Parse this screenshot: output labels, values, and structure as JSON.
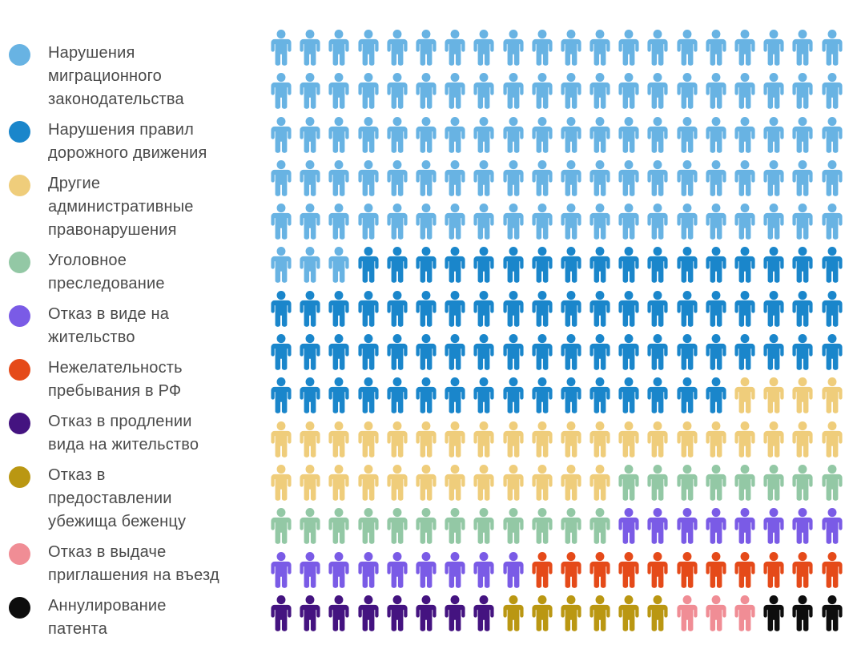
{
  "legend": {
    "items": [
      {
        "label": "Нарушения миграционного законодательства",
        "label_lines": [
          "Нарушения",
          "миграционного",
          "законодательства"
        ],
        "color": "#68B3E3"
      },
      {
        "label": "Нарушения правил дорожного движения",
        "label_lines": [
          "Нарушения правил",
          "дорожного движения"
        ],
        "color": "#1A86CB"
      },
      {
        "label": "Другие административные правонарушения",
        "label_lines": [
          "Другие",
          "административные",
          "правонарушения"
        ],
        "color": "#EFCD7B"
      },
      {
        "label": "Уголовное преследование",
        "label_lines": [
          "Уголовное",
          "преследование"
        ],
        "color": "#93C8A5"
      },
      {
        "label": "Отказ в виде на жительство",
        "label_lines": [
          "Отказ в виде на",
          "жительство"
        ],
        "color": "#7A5BE6"
      },
      {
        "label": "Нежелательность пребывания в РФ",
        "label_lines": [
          "Нежелательность",
          "пребывания в РФ"
        ],
        "color": "#E54A19"
      },
      {
        "label": "Отказ в продлении вида на жительство",
        "label_lines": [
          "Отказ в продлении",
          "вида на жительство"
        ],
        "color": "#441380"
      },
      {
        "label": "Отказ в предоставлении убежища беженцу",
        "label_lines": [
          "Отказ в",
          "предоставлении",
          "убежища беженцу"
        ],
        "color": "#BA9712"
      },
      {
        "label": "Отказ в выдаче приглашения на въезд",
        "label_lines": [
          "Отказ в выдаче",
          "приглашения на въезд"
        ],
        "color": "#F08D95"
      },
      {
        "label": "Аннулирование патента",
        "label_lines": [
          "Аннулирование",
          "патента"
        ],
        "color": "#0D0D0D"
      }
    ]
  },
  "chart_data": {
    "type": "pictogram",
    "icon": "person",
    "icons_per_row": 20,
    "rows": 14,
    "total_icons": 280,
    "legend_position": "left",
    "categories": [
      {
        "label": "Нарушения миграционного законодательства",
        "count": 103,
        "color": "#68B3E3"
      },
      {
        "label": "Нарушения правил дорожного движения",
        "count": 73,
        "color": "#1A86CB"
      },
      {
        "label": "Другие административные правонарушения",
        "count": 36,
        "color": "#EFCD7B"
      },
      {
        "label": "Уголовное преследование",
        "count": 20,
        "color": "#93C8A5"
      },
      {
        "label": "Отказ в виде на жительство",
        "count": 17,
        "color": "#7A5BE6"
      },
      {
        "label": "Нежелательность пребывания в РФ",
        "count": 11,
        "color": "#E54A19"
      },
      {
        "label": "Отказ в продлении вида на жительство",
        "count": 8,
        "color": "#441380"
      },
      {
        "label": "Отказ в предоставлении убежища беженцу",
        "count": 6,
        "color": "#BA9712"
      },
      {
        "label": "Отказ в выдаче приглашения на въезд",
        "count": 3,
        "color": "#F08D95"
      },
      {
        "label": "Аннулирование патента",
        "count": 3,
        "color": "#0D0D0D"
      }
    ]
  },
  "colors": {
    "background": "#FFFFFF",
    "text": "#4A4A4A"
  }
}
